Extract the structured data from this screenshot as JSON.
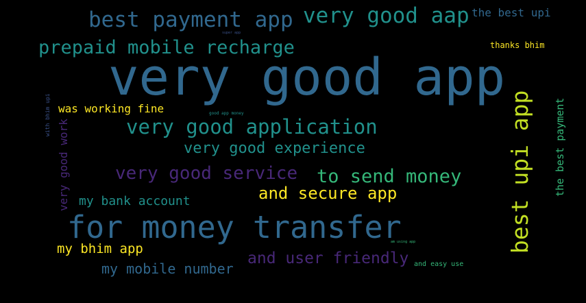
{
  "colors": {
    "background": "#000000",
    "palette": {
      "blue": "#31688e",
      "teal": "#21918c",
      "darkblue": "#3b528b",
      "green": "#35b779",
      "yellow": "#fde725",
      "lime": "#c2df23",
      "purple": "#482878",
      "deeppurple": "#440154"
    }
  },
  "words": [
    {
      "text": "very good app",
      "color": "#31688e"
    },
    {
      "text": "best payment app",
      "color": "#31688e"
    },
    {
      "text": "very good aap",
      "color": "#21918c"
    },
    {
      "text": "the best upi",
      "color": "#31688e"
    },
    {
      "text": "super app",
      "color": "#3b528b"
    },
    {
      "text": "prepaid mobile recharge",
      "color": "#21918c"
    },
    {
      "text": "thanks bhim",
      "color": "#fde725"
    },
    {
      "text": "was working fine",
      "color": "#fde725"
    },
    {
      "text": "good app money",
      "color": "#21918c"
    },
    {
      "text": "very good application",
      "color": "#21918c"
    },
    {
      "text": "very good experience",
      "color": "#21918c"
    },
    {
      "text": "very good service",
      "color": "#482878"
    },
    {
      "text": "to send money",
      "color": "#35b779"
    },
    {
      "text": "and secure app",
      "color": "#fde725"
    },
    {
      "text": "my bank account",
      "color": "#21918c"
    },
    {
      "text": "for money transfer",
      "color": "#31688e"
    },
    {
      "text": "my bhim app",
      "color": "#fde725"
    },
    {
      "text": "my mobile number",
      "color": "#31688e"
    },
    {
      "text": "and user friendly",
      "color": "#482878"
    },
    {
      "text": "am using app",
      "color": "#35b779"
    },
    {
      "text": "and easy use",
      "color": "#35b779"
    },
    {
      "text": "best upi app",
      "color": "#c2df23"
    },
    {
      "text": "the best payment",
      "color": "#35b779"
    },
    {
      "text": "very good work",
      "color": "#482878"
    },
    {
      "text": "with bhim upi",
      "color": "#3b528b"
    }
  ]
}
